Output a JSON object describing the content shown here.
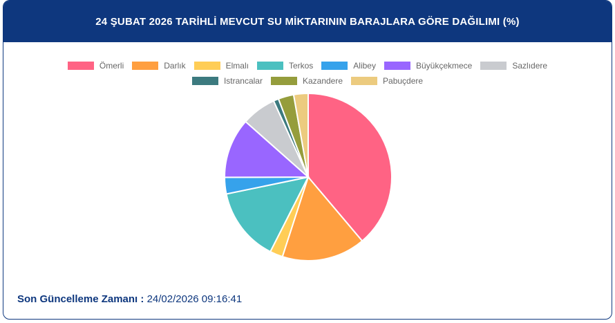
{
  "header": {
    "title": "24 ŞUBAT 2026 TARİHLİ MEVCUT SU MİKTARININ BARAJLARA GÖRE DAĞILIMI (%)"
  },
  "chart_data": {
    "type": "pie",
    "title": "24 ŞUBAT 2026 TARİHLİ MEVCUT SU MİKTARININ BARAJLARA GÖRE DAĞILIMI (%)",
    "legend_position": "top",
    "categories": [
      "Ömerli",
      "Darlık",
      "Elmalı",
      "Terkos",
      "Alibey",
      "Büyükçekmece",
      "Sazlıdere",
      "Istrancalar",
      "Kazandere",
      "Pabuçdere"
    ],
    "values": [
      38.9,
      16.2,
      2.5,
      14.3,
      3.2,
      11.6,
      6.7,
      1.0,
      3.0,
      2.8
    ],
    "colors": [
      "#ff6384",
      "#ff9f40",
      "#ffcd56",
      "#4bc0c0",
      "#36a2eb",
      "#9966ff",
      "#c9cbcf",
      "#3c7a7f",
      "#959d3c",
      "#eccb7f"
    ]
  },
  "footer": {
    "label": "Son Güncelleme Zamanı :",
    "value": "24/02/2026 09:16:41"
  }
}
